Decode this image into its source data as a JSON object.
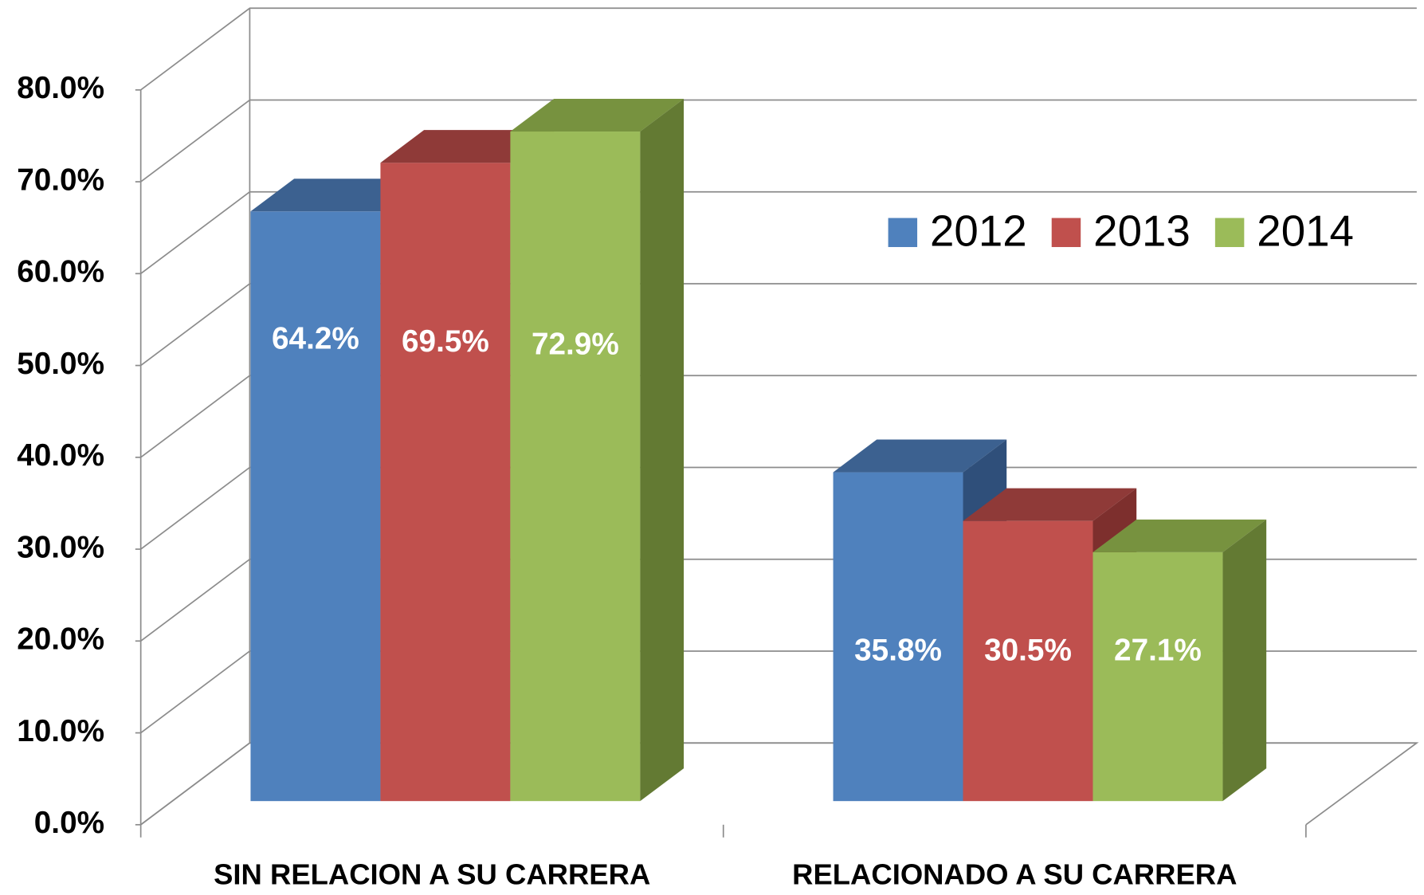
{
  "chart_data": {
    "type": "bar3d",
    "categories": [
      "SIN RELACION A SU CARRERA",
      "RELACIONADO A SU CARRERA"
    ],
    "series": [
      {
        "name": "2012",
        "color": "#4f81bd",
        "top": "#3c6190",
        "side": "#2f4f7a",
        "values": [
          64.2,
          35.8
        ],
        "value_labels": [
          "64.2%",
          "35.8%"
        ]
      },
      {
        "name": "2013",
        "color": "#c0504d",
        "top": "#8f3a38",
        "side": "#7d2f2d",
        "values": [
          69.5,
          30.5
        ],
        "value_labels": [
          "69.5%",
          "30.5%"
        ]
      },
      {
        "name": "2014",
        "color": "#9bbb59",
        "top": "#77923f",
        "side": "#637a33",
        "values": [
          72.9,
          27.1
        ],
        "value_labels": [
          "72.9%",
          "27.1%"
        ]
      }
    ],
    "ylim": [
      0,
      80
    ],
    "yticks": [
      {
        "value": 0,
        "label": "0.0%"
      },
      {
        "value": 10,
        "label": "10.0%"
      },
      {
        "value": 20,
        "label": "20.0%"
      },
      {
        "value": 30,
        "label": "30.0%"
      },
      {
        "value": 40,
        "label": "40.0%"
      },
      {
        "value": 50,
        "label": "50.0%"
      },
      {
        "value": 60,
        "label": "60.0%"
      },
      {
        "value": 70,
        "label": "70.0%"
      },
      {
        "value": 80,
        "label": "80.0%"
      }
    ],
    "grid": true,
    "legend": "top-right"
  }
}
